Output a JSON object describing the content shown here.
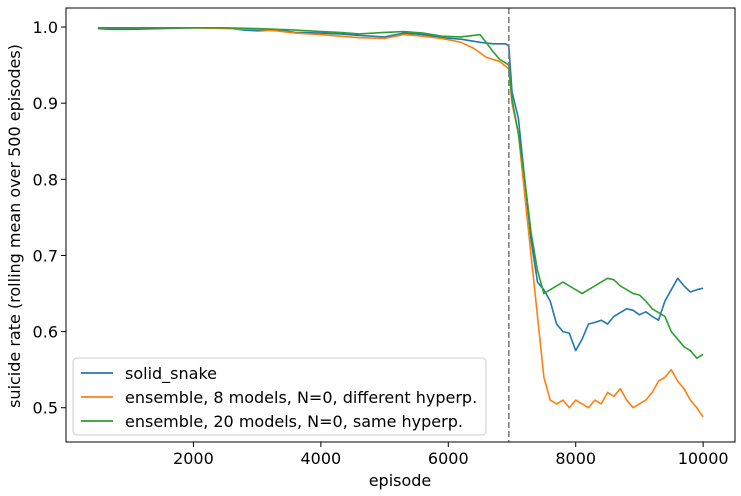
{
  "chart_data": {
    "type": "line",
    "title": "",
    "xlabel": "episode",
    "ylabel": "suicide rate (rolling mean over 500 episodes)",
    "xlim": [
      0,
      10500
    ],
    "ylim": [
      0.455,
      1.025
    ],
    "x_ticks": [
      2000,
      4000,
      6000,
      8000,
      10000
    ],
    "x_tick_labels": [
      "2000",
      "4000",
      "6000",
      "8000",
      "10000"
    ],
    "y_ticks": [
      0.5,
      0.6,
      0.7,
      0.8,
      0.9,
      1.0
    ],
    "y_tick_labels": [
      "0.5",
      "0.6",
      "0.7",
      "0.8",
      "0.9",
      "1.0"
    ],
    "grid": false,
    "legend_position": "bottom-left",
    "vline": {
      "x": 6950,
      "style": "dashed",
      "color": "#808080"
    },
    "series": [
      {
        "name": "solid_snake",
        "color": "#1f77b4",
        "points": [
          [
            500,
            0.998
          ],
          [
            700,
            0.997
          ],
          [
            1000,
            0.997
          ],
          [
            1500,
            0.998
          ],
          [
            2000,
            0.999
          ],
          [
            2500,
            0.999
          ],
          [
            2800,
            0.996
          ],
          [
            3000,
            0.995
          ],
          [
            3300,
            0.996
          ],
          [
            3600,
            0.993
          ],
          [
            4000,
            0.992
          ],
          [
            4300,
            0.991
          ],
          [
            4600,
            0.989
          ],
          [
            5000,
            0.987
          ],
          [
            5300,
            0.992
          ],
          [
            5600,
            0.99
          ],
          [
            5900,
            0.986
          ],
          [
            6200,
            0.984
          ],
          [
            6500,
            0.98
          ],
          [
            6700,
            0.978
          ],
          [
            6900,
            0.978
          ],
          [
            6950,
            0.975
          ],
          [
            7000,
            0.915
          ],
          [
            7100,
            0.88
          ],
          [
            7200,
            0.8
          ],
          [
            7300,
            0.72
          ],
          [
            7400,
            0.665
          ],
          [
            7500,
            0.655
          ],
          [
            7600,
            0.64
          ],
          [
            7700,
            0.61
          ],
          [
            7800,
            0.6
          ],
          [
            7900,
            0.598
          ],
          [
            8000,
            0.575
          ],
          [
            8100,
            0.59
          ],
          [
            8200,
            0.61
          ],
          [
            8300,
            0.612
          ],
          [
            8400,
            0.615
          ],
          [
            8500,
            0.61
          ],
          [
            8600,
            0.62
          ],
          [
            8700,
            0.625
          ],
          [
            8800,
            0.63
          ],
          [
            8900,
            0.628
          ],
          [
            9000,
            0.622
          ],
          [
            9100,
            0.626
          ],
          [
            9200,
            0.62
          ],
          [
            9300,
            0.615
          ],
          [
            9400,
            0.64
          ],
          [
            9500,
            0.655
          ],
          [
            9600,
            0.67
          ],
          [
            9700,
            0.66
          ],
          [
            9800,
            0.652
          ],
          [
            9900,
            0.655
          ],
          [
            10000,
            0.657
          ]
        ]
      },
      {
        "name": "ensemble, 8 models, N=0, different hyperp.",
        "color": "#ff7f0e",
        "points": [
          [
            500,
            0.999
          ],
          [
            1000,
            0.999
          ],
          [
            1500,
            0.999
          ],
          [
            2000,
            0.999
          ],
          [
            2500,
            0.998
          ],
          [
            3000,
            0.997
          ],
          [
            3300,
            0.995
          ],
          [
            3600,
            0.992
          ],
          [
            4000,
            0.99
          ],
          [
            4300,
            0.988
          ],
          [
            4600,
            0.986
          ],
          [
            5000,
            0.985
          ],
          [
            5300,
            0.99
          ],
          [
            5600,
            0.988
          ],
          [
            5900,
            0.985
          ],
          [
            6200,
            0.98
          ],
          [
            6400,
            0.972
          ],
          [
            6600,
            0.96
          ],
          [
            6800,
            0.955
          ],
          [
            6950,
            0.945
          ],
          [
            7000,
            0.9
          ],
          [
            7100,
            0.86
          ],
          [
            7200,
            0.78
          ],
          [
            7300,
            0.7
          ],
          [
            7400,
            0.62
          ],
          [
            7500,
            0.54
          ],
          [
            7600,
            0.51
          ],
          [
            7700,
            0.505
          ],
          [
            7800,
            0.51
          ],
          [
            7900,
            0.5
          ],
          [
            8000,
            0.51
          ],
          [
            8100,
            0.505
          ],
          [
            8200,
            0.5
          ],
          [
            8300,
            0.51
          ],
          [
            8400,
            0.505
          ],
          [
            8500,
            0.52
          ],
          [
            8600,
            0.515
          ],
          [
            8700,
            0.525
          ],
          [
            8800,
            0.51
          ],
          [
            8900,
            0.5
          ],
          [
            9000,
            0.505
          ],
          [
            9100,
            0.51
          ],
          [
            9200,
            0.52
          ],
          [
            9300,
            0.535
          ],
          [
            9400,
            0.54
          ],
          [
            9500,
            0.55
          ],
          [
            9600,
            0.535
          ],
          [
            9700,
            0.525
          ],
          [
            9800,
            0.51
          ],
          [
            9900,
            0.5
          ],
          [
            10000,
            0.488
          ]
        ]
      },
      {
        "name": "ensemble, 20 models, N=0, same hyperp.",
        "color": "#2ca02c",
        "points": [
          [
            500,
            0.999
          ],
          [
            1000,
            0.999
          ],
          [
            1500,
            0.999
          ],
          [
            2000,
            0.999
          ],
          [
            2500,
            0.999
          ],
          [
            3000,
            0.998
          ],
          [
            3300,
            0.997
          ],
          [
            3600,
            0.996
          ],
          [
            4000,
            0.994
          ],
          [
            4300,
            0.993
          ],
          [
            4600,
            0.991
          ],
          [
            5000,
            0.993
          ],
          [
            5300,
            0.994
          ],
          [
            5600,
            0.992
          ],
          [
            5900,
            0.988
          ],
          [
            6200,
            0.987
          ],
          [
            6500,
            0.99
          ],
          [
            6700,
            0.968
          ],
          [
            6800,
            0.958
          ],
          [
            6950,
            0.95
          ],
          [
            7000,
            0.905
          ],
          [
            7100,
            0.86
          ],
          [
            7200,
            0.8
          ],
          [
            7300,
            0.73
          ],
          [
            7400,
            0.68
          ],
          [
            7500,
            0.65
          ],
          [
            7600,
            0.655
          ],
          [
            7700,
            0.66
          ],
          [
            7800,
            0.665
          ],
          [
            7900,
            0.66
          ],
          [
            8000,
            0.655
          ],
          [
            8100,
            0.65
          ],
          [
            8200,
            0.655
          ],
          [
            8300,
            0.66
          ],
          [
            8400,
            0.665
          ],
          [
            8500,
            0.67
          ],
          [
            8600,
            0.668
          ],
          [
            8700,
            0.66
          ],
          [
            8800,
            0.655
          ],
          [
            8900,
            0.65
          ],
          [
            9000,
            0.648
          ],
          [
            9100,
            0.64
          ],
          [
            9200,
            0.63
          ],
          [
            9300,
            0.625
          ],
          [
            9400,
            0.62
          ],
          [
            9500,
            0.6
          ],
          [
            9600,
            0.59
          ],
          [
            9700,
            0.58
          ],
          [
            9800,
            0.575
          ],
          [
            9900,
            0.565
          ],
          [
            10000,
            0.57
          ]
        ]
      }
    ]
  }
}
